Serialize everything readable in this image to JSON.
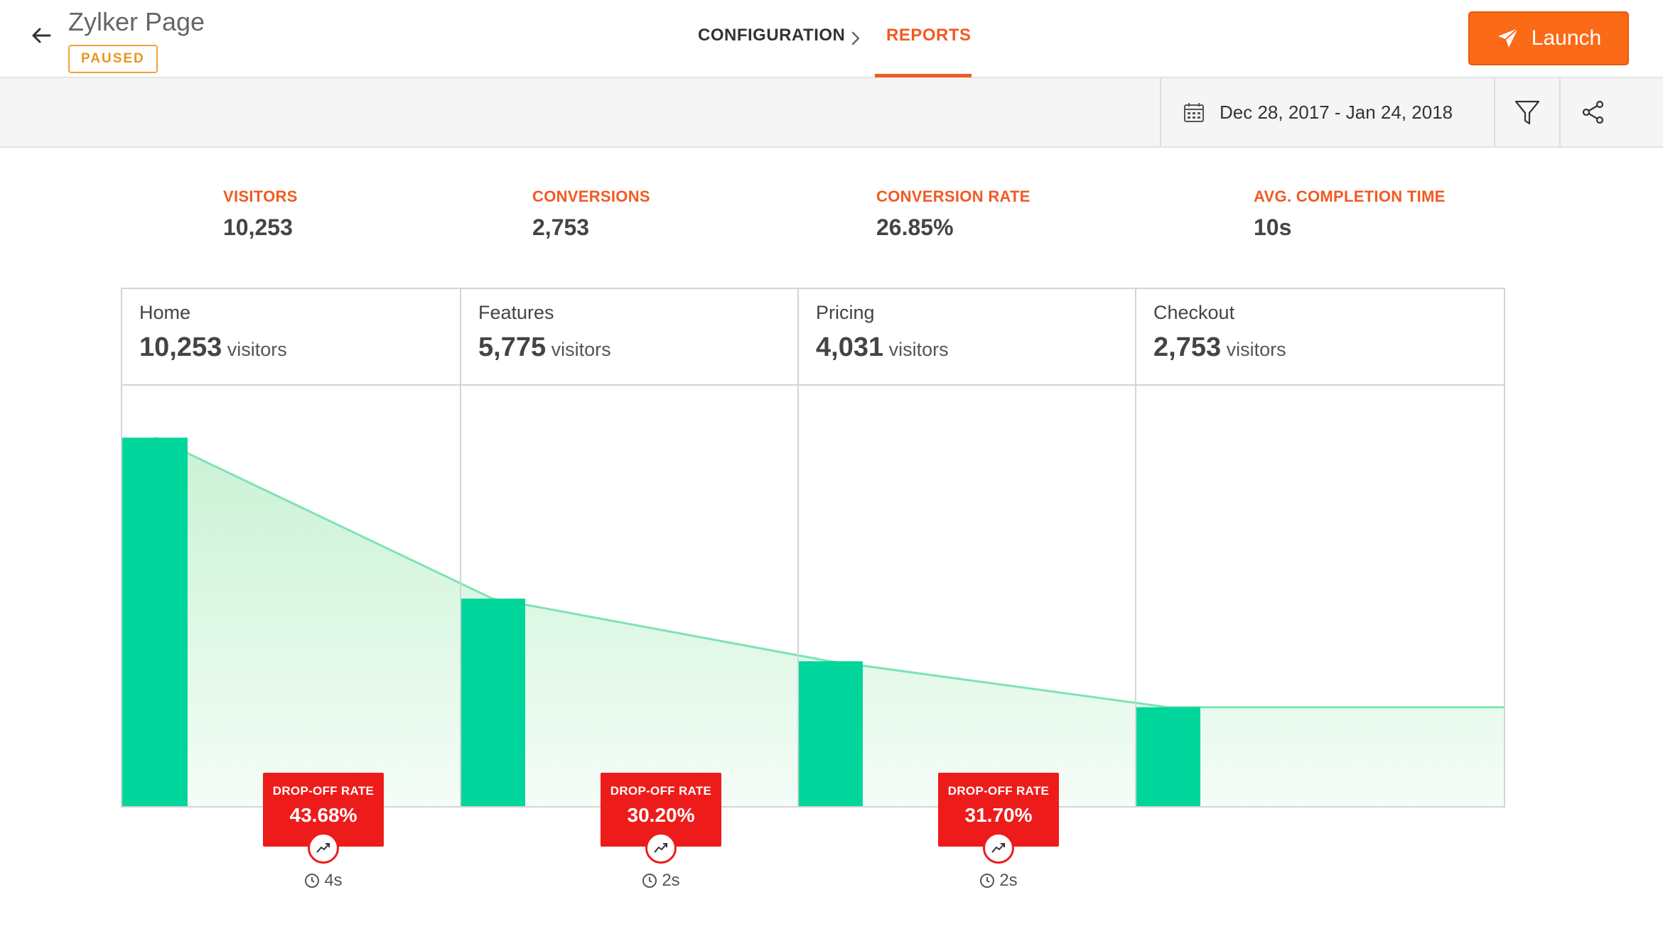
{
  "header": {
    "title": "Zylker Page",
    "status": "PAUSED",
    "tabs": [
      {
        "label": "CONFIGURATION",
        "active": false
      },
      {
        "label": "REPORTS",
        "active": true
      }
    ],
    "launch_label": "Launch"
  },
  "toolbar": {
    "date_range": "Dec 28, 2017 - Jan 24, 2018"
  },
  "metrics": [
    {
      "label": "VISITORS",
      "value": "10,253"
    },
    {
      "label": "CONVERSIONS",
      "value": "2,753"
    },
    {
      "label": "CONVERSION RATE",
      "value": "26.85%"
    },
    {
      "label": "AVG. COMPLETION TIME",
      "value": "10s"
    }
  ],
  "funnel": {
    "stages": [
      {
        "name": "Home",
        "visitors": "10,253",
        "unit": "visitors"
      },
      {
        "name": "Features",
        "visitors": "5,775",
        "unit": "visitors"
      },
      {
        "name": "Pricing",
        "visitors": "4,031",
        "unit": "visitors"
      },
      {
        "name": "Checkout",
        "visitors": "2,753",
        "unit": "visitors"
      }
    ],
    "dropoffs": [
      {
        "label": "DROP-OFF RATE",
        "value": "43.68%",
        "time": "4s"
      },
      {
        "label": "DROP-OFF RATE",
        "value": "30.20%",
        "time": "2s"
      },
      {
        "label": "DROP-OFF RATE",
        "value": "31.70%",
        "time": "2s"
      }
    ]
  },
  "chart_data": {
    "type": "bar",
    "categories": [
      "Home",
      "Features",
      "Pricing",
      "Checkout"
    ],
    "values": [
      10253,
      5775,
      4031,
      2753
    ],
    "title": "",
    "xlabel": "",
    "ylabel": "",
    "ylim": [
      0,
      11700
    ],
    "colors": {
      "bar": "#00d69b",
      "area_top": "#c9f2d4",
      "area_line": "#7ee3b4"
    }
  },
  "colors": {
    "accent": "#f15a22",
    "launch": "#fb6a16",
    "paused": "#e8961e",
    "dropoff": "#ee1b1b"
  },
  "icons": {
    "back": "arrow-left-icon",
    "nav_separator": "chevron-right-icon",
    "launch": "paper-plane-icon",
    "calendar": "calendar-icon",
    "filter": "filter-icon",
    "share": "share-icon",
    "trend": "trend-up-icon",
    "clock": "clock-icon"
  }
}
